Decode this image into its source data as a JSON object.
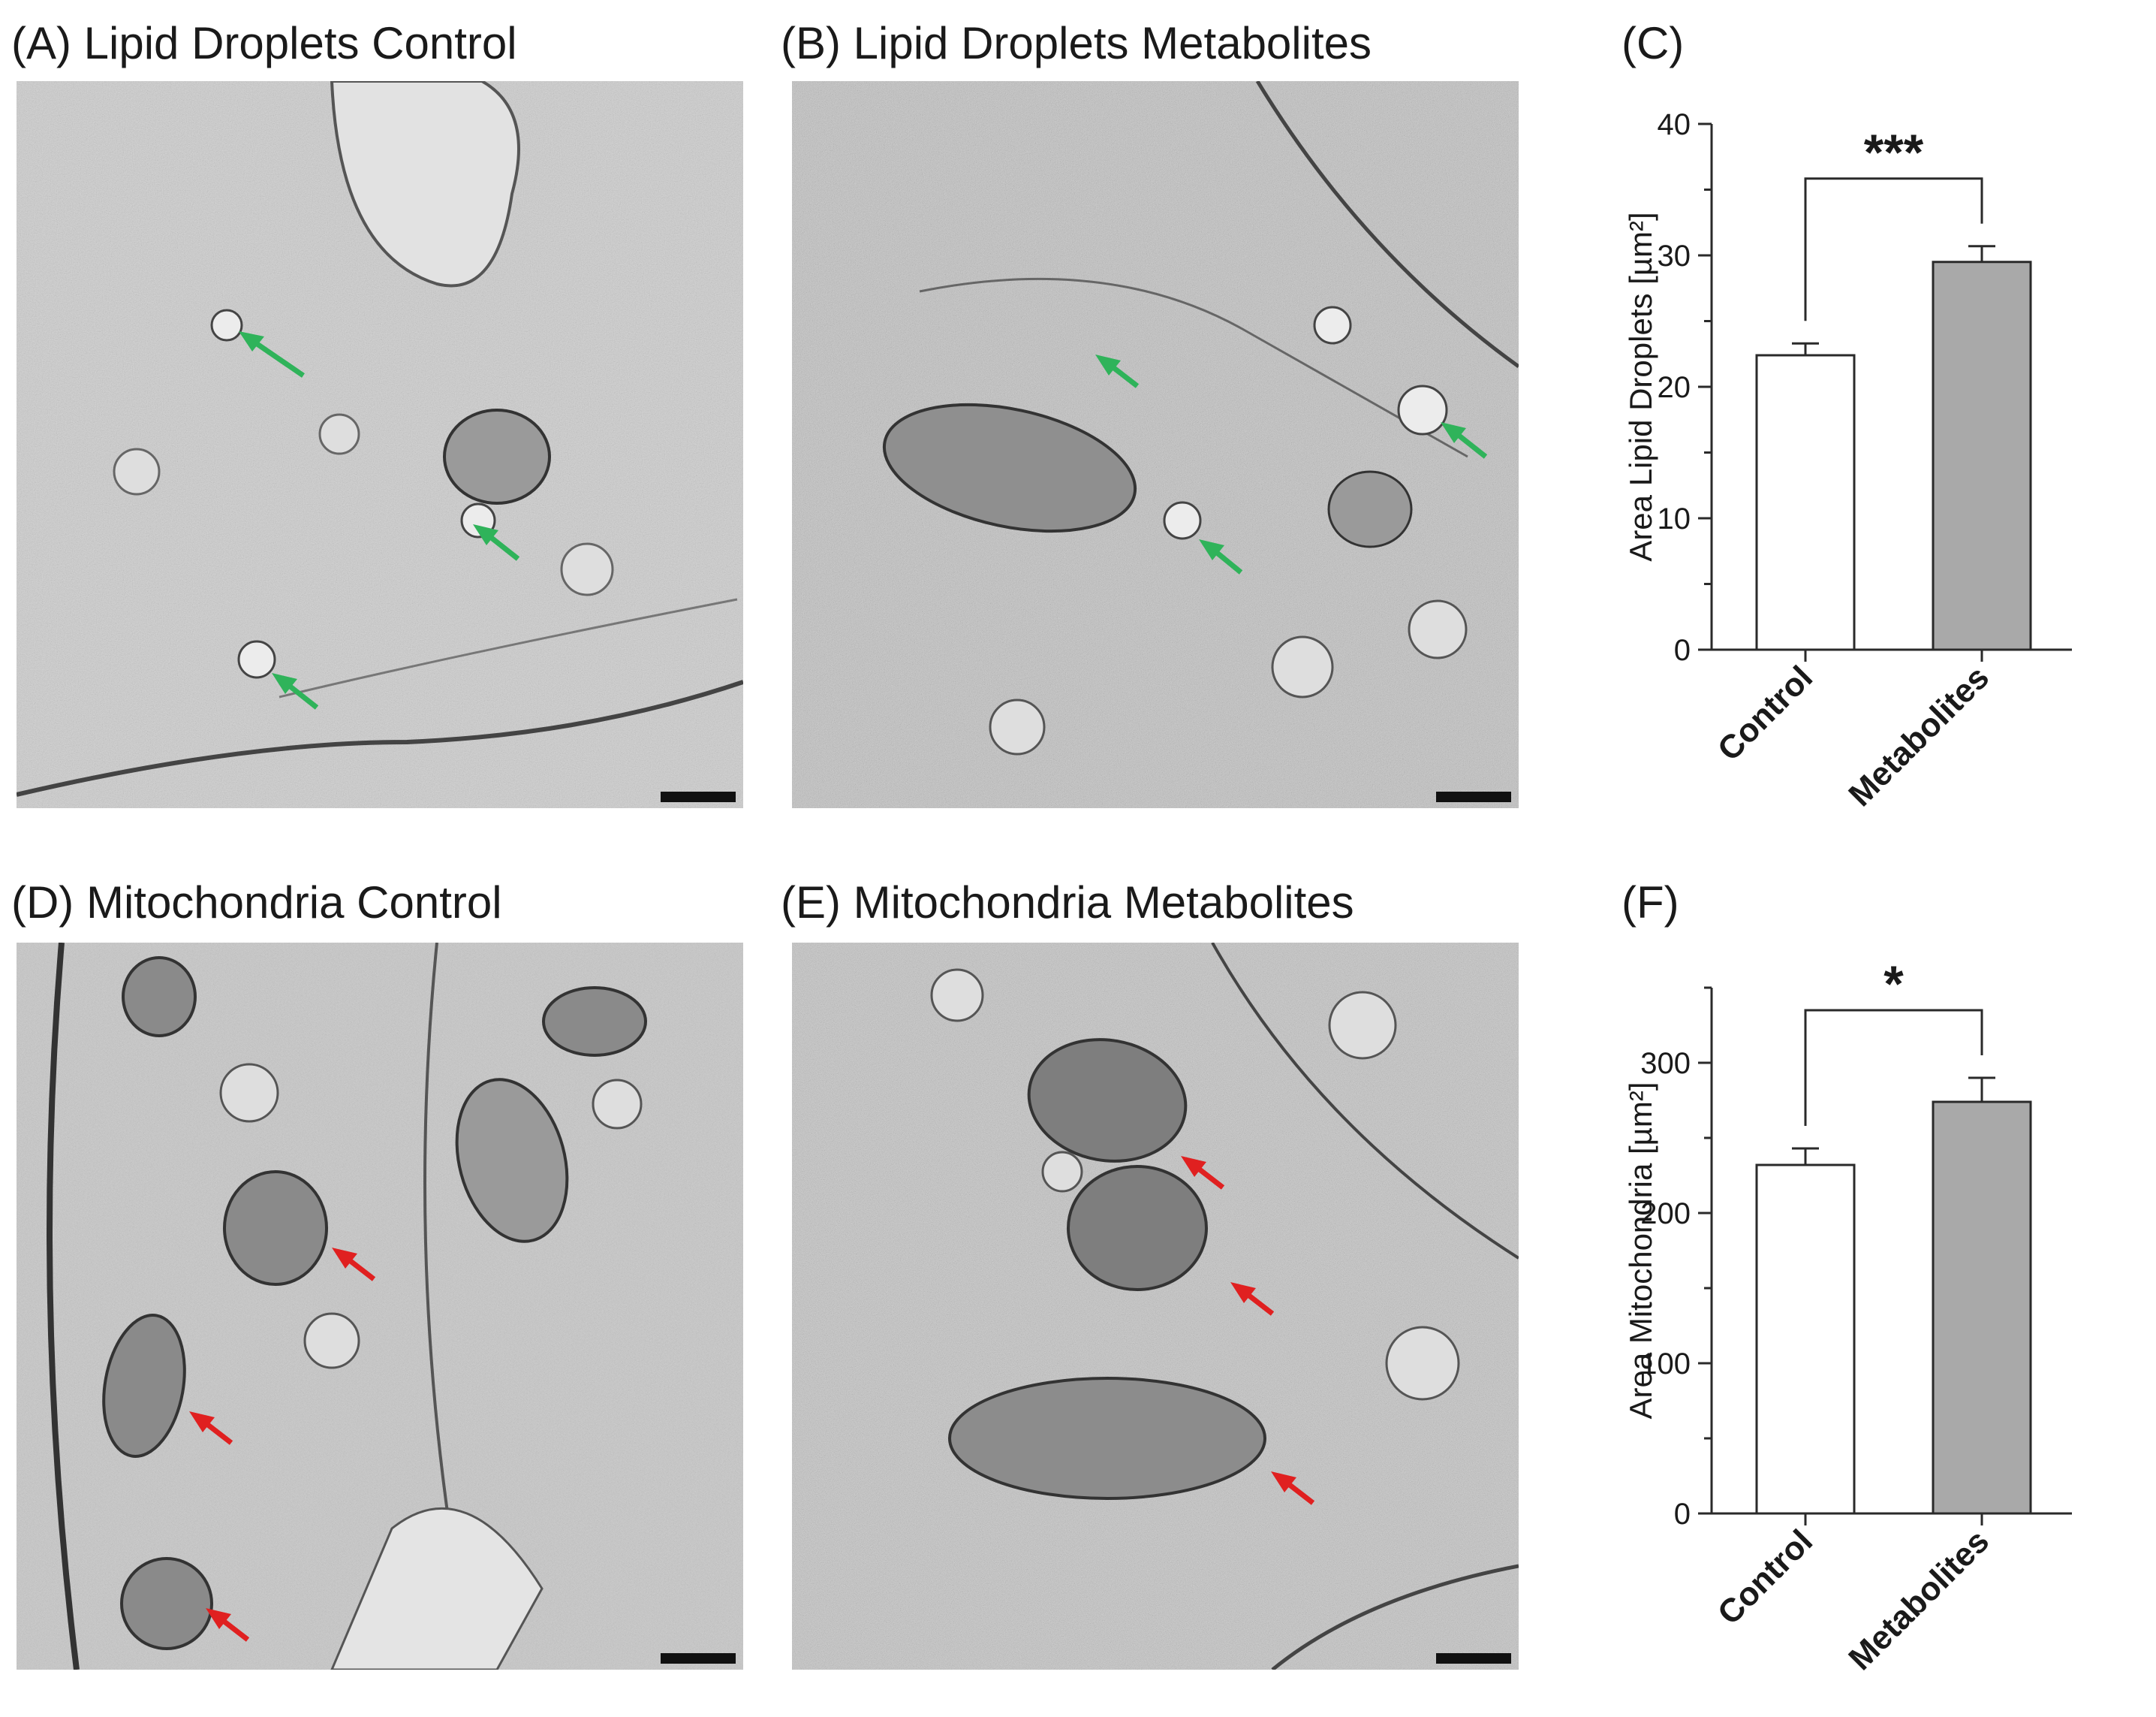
{
  "panels": {
    "A": {
      "title": "(A) Lipid Droplets Control",
      "scale_bar": "500 nm"
    },
    "B": {
      "title": "(B) Lipid Droplets Metabolites",
      "scale_bar": "500 nm"
    },
    "C": {
      "title": "(C)"
    },
    "D": {
      "title": "(D) Mitochondria Control",
      "scale_bar": "500 nm"
    },
    "E": {
      "title": "(E) Mitochondria Metabolites",
      "scale_bar": "500 nm"
    },
    "F": {
      "title": "(F)"
    }
  },
  "colors": {
    "control_bar": "#ffffff",
    "metabolites_bar": "#a9a9a9",
    "lipid_arrow": "#2fb35a",
    "mito_arrow": "#e02020",
    "em_background": "#c9c9c9"
  },
  "chart_data": [
    {
      "type": "bar",
      "panel": "C",
      "categories": [
        "Control",
        "Metabolites"
      ],
      "values": [
        22.4,
        29.5
      ],
      "errors": [
        0.9,
        1.2
      ],
      "ylabel": "Area Lipid Droplets [µm²]",
      "ylim": [
        0,
        40
      ],
      "yticks": [
        0,
        10,
        20,
        30,
        40
      ],
      "significance": "***"
    },
    {
      "type": "bar",
      "panel": "F",
      "categories": [
        "Control",
        "Metabolites"
      ],
      "values": [
        232,
        274
      ],
      "errors": [
        11,
        16
      ],
      "ylabel": "Area Mitochondria [µm²]",
      "ylim": [
        0,
        350
      ],
      "yticks": [
        0,
        100,
        200,
        300
      ],
      "significance": "*"
    }
  ]
}
